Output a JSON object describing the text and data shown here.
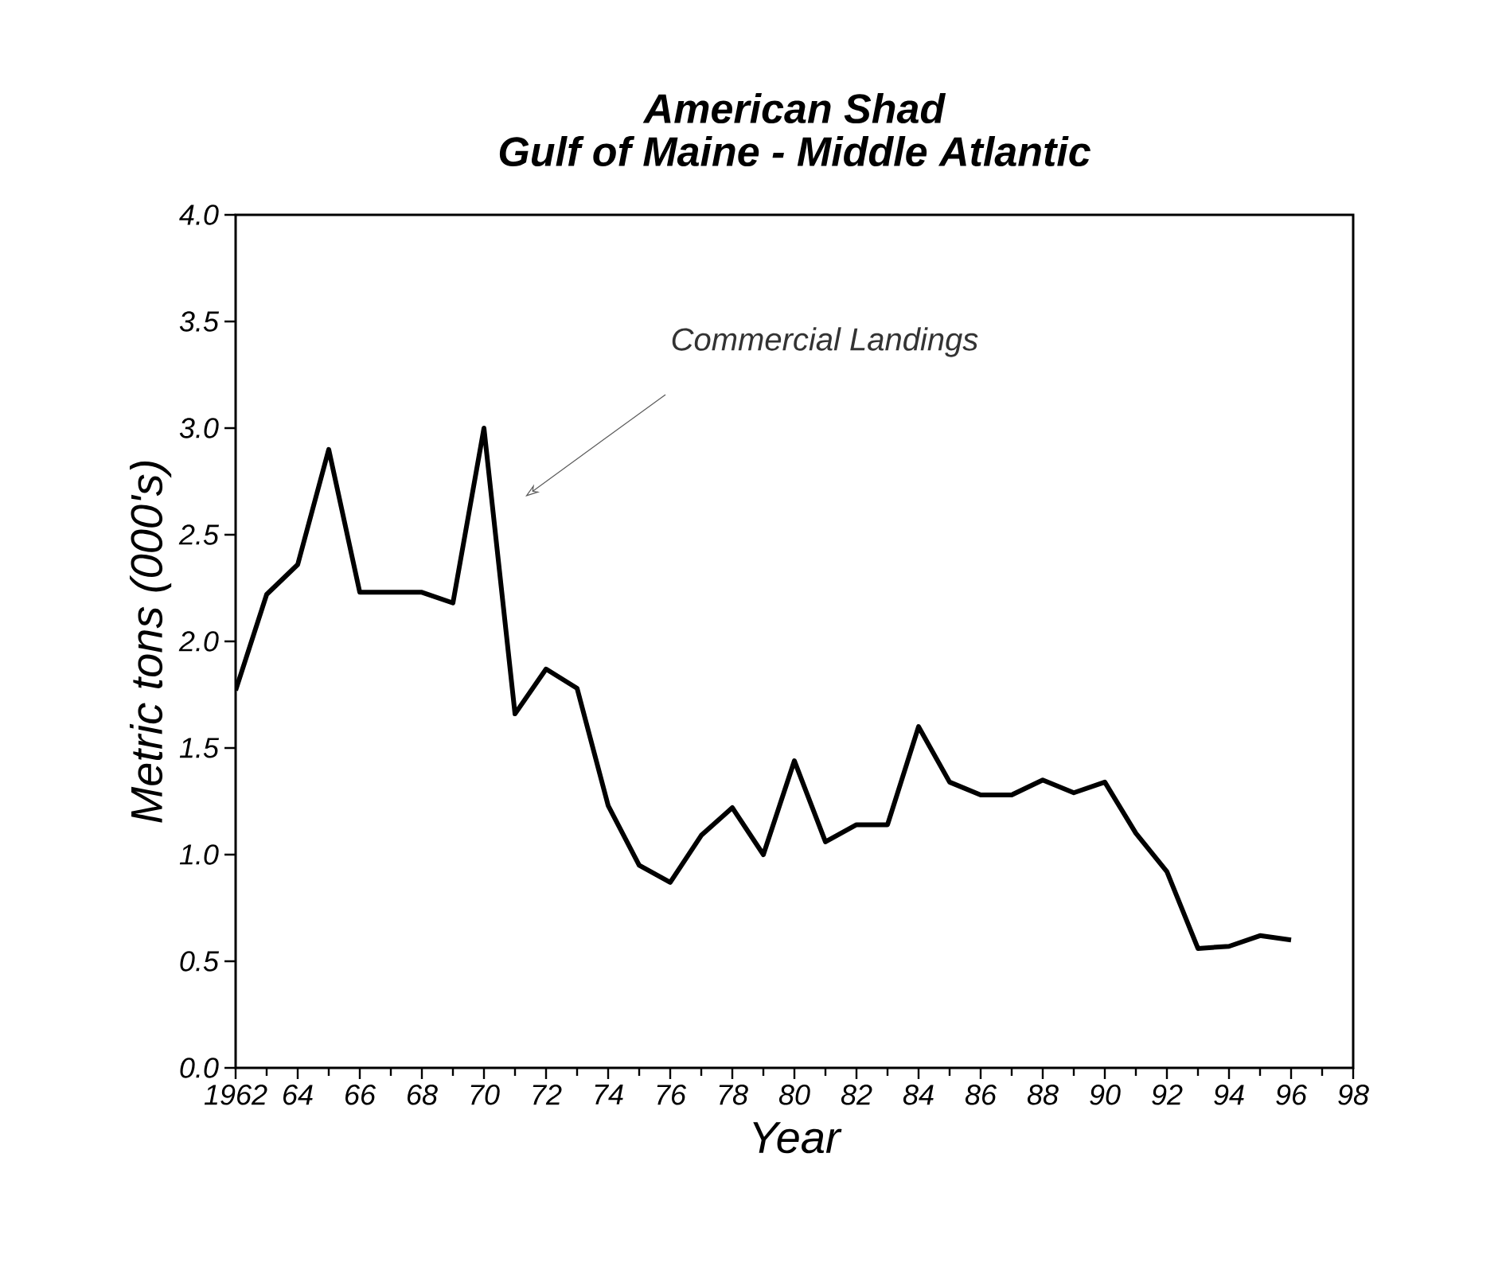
{
  "chart_data": {
    "type": "line",
    "title": "American Shad",
    "subtitle": "Gulf of Maine - Middle Atlantic",
    "xlabel": "Year",
    "ylabel": "Metric tons (000's)",
    "annotations": [
      "Commercial Landings"
    ],
    "x": [
      1962,
      1963,
      1964,
      1965,
      1966,
      1967,
      1968,
      1969,
      1970,
      1971,
      1972,
      1973,
      1974,
      1975,
      1976,
      1977,
      1978,
      1979,
      1980,
      1981,
      1982,
      1983,
      1984,
      1985,
      1986,
      1987,
      1988,
      1989,
      1990,
      1991,
      1992,
      1993,
      1994,
      1995,
      1996
    ],
    "series": [
      {
        "color": "#000000",
        "values": [
          1.77,
          2.22,
          2.36,
          2.9,
          2.23,
          2.23,
          2.23,
          2.18,
          3.0,
          1.66,
          1.87,
          1.78,
          1.23,
          0.95,
          0.87,
          1.09,
          1.22,
          1.0,
          1.44,
          1.06,
          1.14,
          1.14,
          1.6,
          1.34,
          1.28,
          1.28,
          1.35,
          1.29,
          1.34,
          1.1,
          0.92,
          0.56,
          0.57,
          0.62,
          0.6
        ]
      }
    ],
    "xlim": [
      1962,
      1998
    ],
    "xticks": [
      {
        "value": 1962,
        "label": "1962"
      },
      {
        "value": 1964,
        "label": "64"
      },
      {
        "value": 1966,
        "label": "66"
      },
      {
        "value": 1968,
        "label": "68"
      },
      {
        "value": 1970,
        "label": "70"
      },
      {
        "value": 1972,
        "label": "72"
      },
      {
        "value": 1974,
        "label": "74"
      },
      {
        "value": 1976,
        "label": "76"
      },
      {
        "value": 1978,
        "label": "78"
      },
      {
        "value": 1980,
        "label": "80"
      },
      {
        "value": 1982,
        "label": "82"
      },
      {
        "value": 1984,
        "label": "84"
      },
      {
        "value": 1986,
        "label": "86"
      },
      {
        "value": 1988,
        "label": "88"
      },
      {
        "value": 1990,
        "label": "90"
      },
      {
        "value": 1992,
        "label": "92"
      },
      {
        "value": 1994,
        "label": "94"
      },
      {
        "value": 1996,
        "label": "96"
      },
      {
        "value": 1998,
        "label": "98"
      }
    ],
    "ylim": [
      0,
      4
    ],
    "yticks": [
      {
        "value": 0,
        "label": "0.0"
      },
      {
        "value": 0.5,
        "label": "0.5"
      },
      {
        "value": 1,
        "label": "1.0"
      },
      {
        "value": 1.5,
        "label": "1.5"
      },
      {
        "value": 2,
        "label": "2.0"
      },
      {
        "value": 2.5,
        "label": "2.5"
      },
      {
        "value": 3,
        "label": "3.0"
      },
      {
        "value": 3.5,
        "label": "3.5"
      },
      {
        "value": 4,
        "label": "4.0"
      }
    ],
    "grid": false,
    "marker": "none",
    "line_style": "solid"
  }
}
